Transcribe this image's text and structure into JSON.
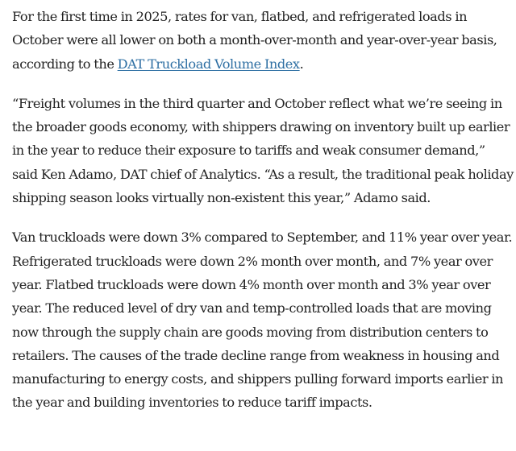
{
  "article": {
    "paragraph1": {
      "before_link": "For the first time in 2025, rates for van, flatbed, and refrigerated loads in October were all lower on both a month-over-month and year-over-year basis, according to the ",
      "link_text": "DAT Truckload Volume Index",
      "after_link": "."
    },
    "paragraph2": "“Freight volumes in the third quarter and October reflect what we’re seeing in the broader goods economy, with shippers drawing on inventory built up earlier in the year to reduce their exposure to tariffs and weak consumer demand,” said Ken Adamo, DAT chief of Analytics. “As a result, the traditional peak holiday shipping season looks virtually non-existent this year,” Adamo said.",
    "paragraph3": "Van truckloads were down 3% compared to September, and 11% year over year. Refrigerated truckloads were down 2% month over month, and 7% year over year. Flatbed truckloads were down 4% month over month and 3% year over year. The reduced level of dry van and temp-controlled loads that are moving now through the supply chain are goods moving from distribution centers to retailers. The causes of the trade decline range from weakness in housing and manufacturing to energy costs, and shippers pulling forward imports earlier in the year and building inventories to reduce tariff impacts."
  },
  "colors": {
    "text": "#222222",
    "link": "#2e6fa3",
    "background": "#ffffff"
  }
}
